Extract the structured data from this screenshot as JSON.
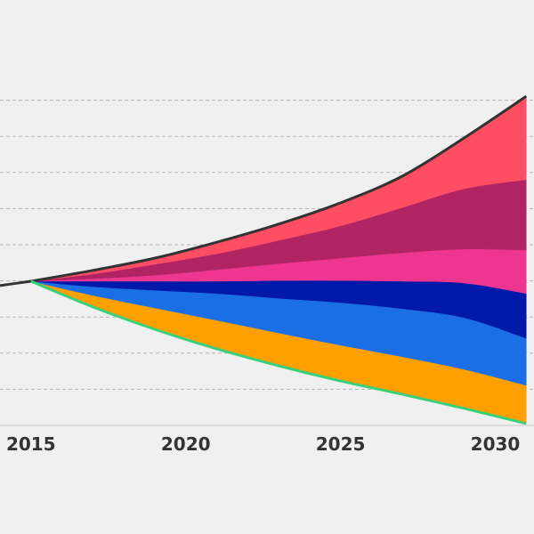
{
  "chart_data": {
    "type": "fan",
    "x": [
      2015,
      2017,
      2019,
      2021,
      2023,
      2025,
      2027,
      2029,
      2031
    ],
    "xlim": [
      2014,
      2031.25
    ],
    "xticks": [
      2015,
      2020,
      2025,
      2030
    ],
    "ylim": [
      0,
      11
    ],
    "yticks": [
      1,
      2,
      3,
      4,
      5,
      6,
      7,
      8,
      9
    ],
    "grid": true,
    "history": {
      "x": [
        2014,
        2015
      ],
      "values": [
        3.87,
        3.99
      ],
      "color": "#333333"
    },
    "lower": {
      "values": [
        3.99,
        3.28,
        2.66,
        2.12,
        1.65,
        1.23,
        0.86,
        0.47,
        0.05
      ],
      "color": "#3ad07a"
    },
    "upper_color": "#333333",
    "series": [
      {
        "color": "#ff9f00",
        "values": [
          0,
          0.32,
          0.59,
          0.79,
          0.91,
          0.99,
          1.04,
          1.08,
          1.06
        ]
      },
      {
        "color": "#1a6fe6",
        "values": [
          0,
          0.24,
          0.49,
          0.74,
          0.96,
          1.18,
          1.33,
          1.43,
          1.3
        ]
      },
      {
        "color": "#0019a8",
        "values": [
          0,
          0.15,
          0.25,
          0.34,
          0.49,
          0.61,
          0.76,
          0.96,
          1.24
        ]
      },
      {
        "color": "#ee3590",
        "values": [
          0,
          0.07,
          0.17,
          0.32,
          0.47,
          0.62,
          0.79,
          0.94,
          1.2
        ]
      },
      {
        "color": "#b02463",
        "values": [
          0,
          0.13,
          0.3,
          0.44,
          0.64,
          0.89,
          1.25,
          1.67,
          1.95
        ]
      },
      {
        "color": "#ff4d63",
        "values": [
          0,
          0.1,
          0.17,
          0.32,
          0.45,
          0.64,
          0.87,
          1.41,
          2.31
        ]
      }
    ]
  }
}
